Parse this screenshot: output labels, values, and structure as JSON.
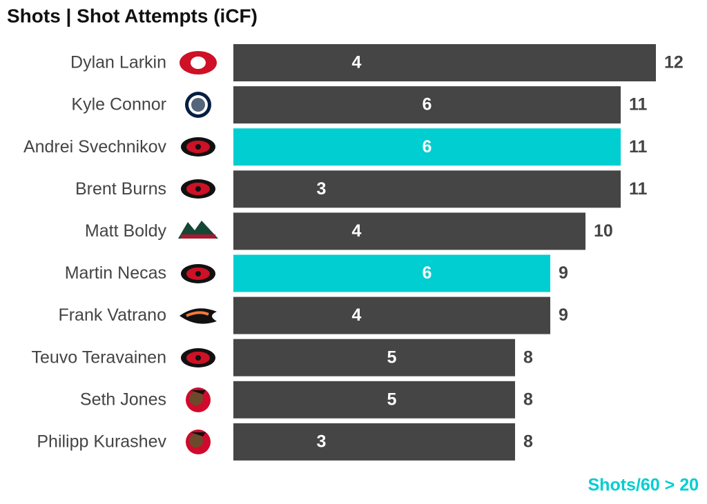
{
  "chart_data": {
    "type": "bar",
    "orientation": "horizontal",
    "title": "Shots | Shot Attempts (iCF)",
    "categories": [
      "Dylan Larkin",
      "Kyle Connor",
      "Andrei Svechnikov",
      "Brent Burns",
      "Matt Boldy",
      "Martin Necas",
      "Frank Vatrano",
      "Teuvo Teravainen",
      "Seth Jones",
      "Philipp Kurashev"
    ],
    "values": [
      12,
      11,
      11,
      11,
      10,
      9,
      9,
      8,
      8,
      8
    ],
    "inner_values": [
      4,
      6,
      6,
      3,
      4,
      6,
      4,
      5,
      5,
      3
    ],
    "colors": [
      "#454545",
      "#454545",
      "#00ced1",
      "#454545",
      "#454545",
      "#00ced1",
      "#454545",
      "#454545",
      "#454545",
      "#454545"
    ],
    "annotation": "Shots/60 > 20",
    "annotation_color": "#00ced1"
  }
}
